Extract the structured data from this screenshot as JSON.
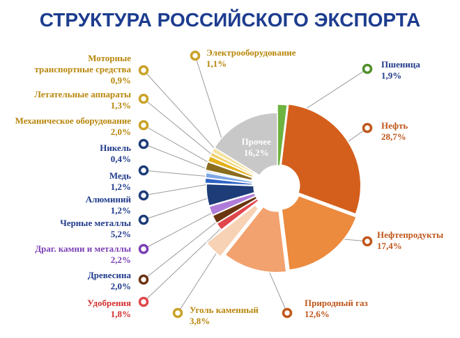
{
  "chart_data": {
    "type": "pie",
    "title": "СТРУКТУРА РОССИЙСКОГО ЭКСПОРТА",
    "slices": [
      {
        "name": "Пшеница",
        "value": 1.9,
        "value_label": "1,9%",
        "color": "#6db33f",
        "label_color": "#1f3a8a",
        "marker_color": "#4f8f2b"
      },
      {
        "name": "Нефть",
        "value": 28.7,
        "value_label": "28,7%",
        "color": "#d45f1c",
        "label_color": "#c0561a",
        "marker_color": "#c0561a"
      },
      {
        "name": "Нефтепродукты",
        "value": 17.4,
        "value_label": "17,4%",
        "color": "#ec8a3e",
        "label_color": "#c0561a",
        "marker_color": "#c0561a"
      },
      {
        "name": "Природный газ",
        "value": 12.6,
        "value_label": "12,6%",
        "color": "#f2a26e",
        "label_color": "#c0561a",
        "marker_color": "#c0561a"
      },
      {
        "name": "Уголь каменный",
        "value": 3.8,
        "value_label": "3,8%",
        "color": "#f8d2b4",
        "label_color": "#b8860b",
        "marker_color": "#c9a227"
      },
      {
        "name": "Удобрения",
        "value": 1.8,
        "value_label": "1,8%",
        "color": "#e0474c",
        "label_color": "#d32f2f",
        "marker_color": "#e0474c"
      },
      {
        "name": "Древесина",
        "value": 2.0,
        "value_label": "2,0%",
        "color": "#6b3410",
        "label_color": "#1f3a8a",
        "marker_color": "#6b3410"
      },
      {
        "name": "Драг. камни и металлы",
        "value": 2.2,
        "value_label": "2,2%",
        "color": "#b07cd9",
        "label_color": "#7b3fb5",
        "marker_color": "#7b3fb5"
      },
      {
        "name": "Черные металлы",
        "value": 5.2,
        "value_label": "5,2%",
        "color": "#1d3c78",
        "label_color": "#1f3a8a",
        "marker_color": "#1d3c78"
      },
      {
        "name": "Алюминий",
        "value": 1.2,
        "value_label": "1,2%",
        "color": "#2e62c4",
        "label_color": "#1f3a8a",
        "marker_color": "#1d3c78"
      },
      {
        "name": "Медь",
        "value": 1.2,
        "value_label": "1,2%",
        "color": "#7fa7e6",
        "label_color": "#1f3a8a",
        "marker_color": "#1d3c78"
      },
      {
        "name": "Никель",
        "value": 0.4,
        "value_label": "0,4%",
        "color": "#b7cdea",
        "label_color": "#1f3a8a",
        "marker_color": "#1d3c78"
      },
      {
        "name": "Механическое оборудование",
        "value": 2.0,
        "value_label": "2,0%",
        "color": "#8a6d1e",
        "label_color": "#b8860b",
        "marker_color": "#c9a227"
      },
      {
        "name": "Летательные аппараты",
        "value": 1.3,
        "value_label": "1,3%",
        "color": "#e3b21b",
        "label_color": "#b8860b",
        "marker_color": "#c9a227"
      },
      {
        "name": "Моторные транспортные средства",
        "value": 0.9,
        "value_label": "0,9%",
        "color": "#f0d06a",
        "label_color": "#b8860b",
        "marker_color": "#c9a227"
      },
      {
        "name": "Электрооборудование",
        "value": 1.1,
        "value_label": "1,1%",
        "color": "#f5e3a0",
        "label_color": "#b8860b",
        "marker_color": "#c9a227"
      },
      {
        "name": "Прочее",
        "value": 16.2,
        "value_label": "16,2%",
        "color": "#c8c8c8",
        "label_color": "#ffffff",
        "marker_color": "#c8c8c8"
      }
    ]
  }
}
